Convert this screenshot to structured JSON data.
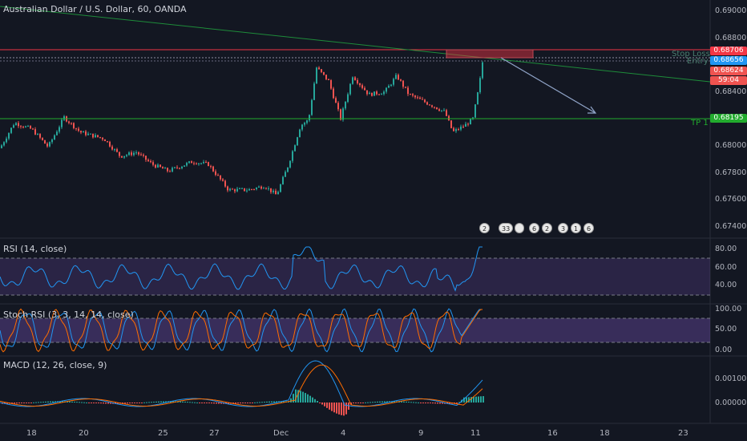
{
  "title": "Australian Dollar / U.S. Dollar, 60, OANDA",
  "colors": {
    "background": "#131722",
    "bull": "#26a69a",
    "bear": "#ef5350",
    "rsi": "#2196f3",
    "stoch_k": "#2196f3",
    "stoch_d": "#ff6d00",
    "stop_loss": "#f23645",
    "tp": "#22ab2e",
    "trend": "#1e8c3a",
    "arrow": "#90a4c8",
    "band": "#7e57c2"
  },
  "price_axis": {
    "ticks": [
      "0.69000",
      "0.68800",
      "0.68600",
      "0.68400",
      "0.68200",
      "0.68000",
      "0.67800",
      "0.67600",
      "0.67400"
    ]
  },
  "price_tags": [
    {
      "text": "0.68706",
      "color": "#f23645"
    },
    {
      "text": "0.68656",
      "color": "#2196f3"
    },
    {
      "text": "0.68624",
      "color": "#ef5350"
    },
    {
      "text": "59:04",
      "color": "#ef5350"
    },
    {
      "text": "0.68195",
      "color": "#22ab2e"
    }
  ],
  "annotations": {
    "stop_loss": "Stop Loss",
    "entry": "Entry",
    "tp": "TP 1"
  },
  "events": [
    "2",
    "33",
    "",
    "6",
    "2",
    "3",
    "1",
    "6"
  ],
  "indicators": {
    "rsi": {
      "label": "RSI (14, close)",
      "ticks": [
        "80.00",
        "60.00",
        "40.00"
      ]
    },
    "stoch": {
      "label": "Stoch RSI (3, 3, 14, 14, close)",
      "ticks": [
        "100.00",
        "50.00",
        "0.00"
      ]
    },
    "macd": {
      "label": "MACD (12, 26, close, 9)",
      "ticks": [
        "0.00100",
        "0.00000"
      ]
    }
  },
  "time_axis": [
    "18",
    "20",
    "25",
    "27",
    "Dec",
    "4",
    "9",
    "11",
    "16",
    "18",
    "23"
  ]
}
